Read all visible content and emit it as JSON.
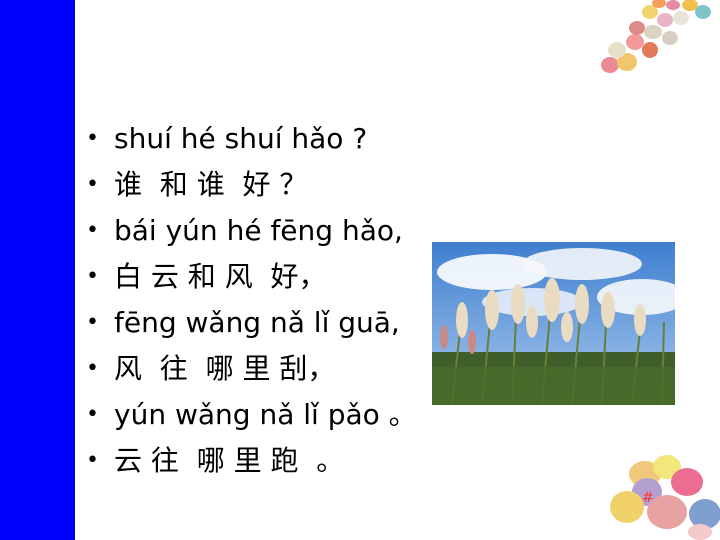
{
  "lines": [
    "shuí hé shuí hǎo ?",
    "谁  和 谁  好 ？",
    "bái yún hé fēng hǎo,",
    "白 云 和 风  好，",
    "fēng wǎng nǎ lǐ guā,",
    "风  往  哪 里 刮，",
    "yún wǎng nǎ lǐ pǎo 。",
    "云 往  哪 里 跑  。"
  ],
  "page_number": "#",
  "colors": {
    "side_bar": "#0000ff",
    "page_number": "#ff3333"
  }
}
